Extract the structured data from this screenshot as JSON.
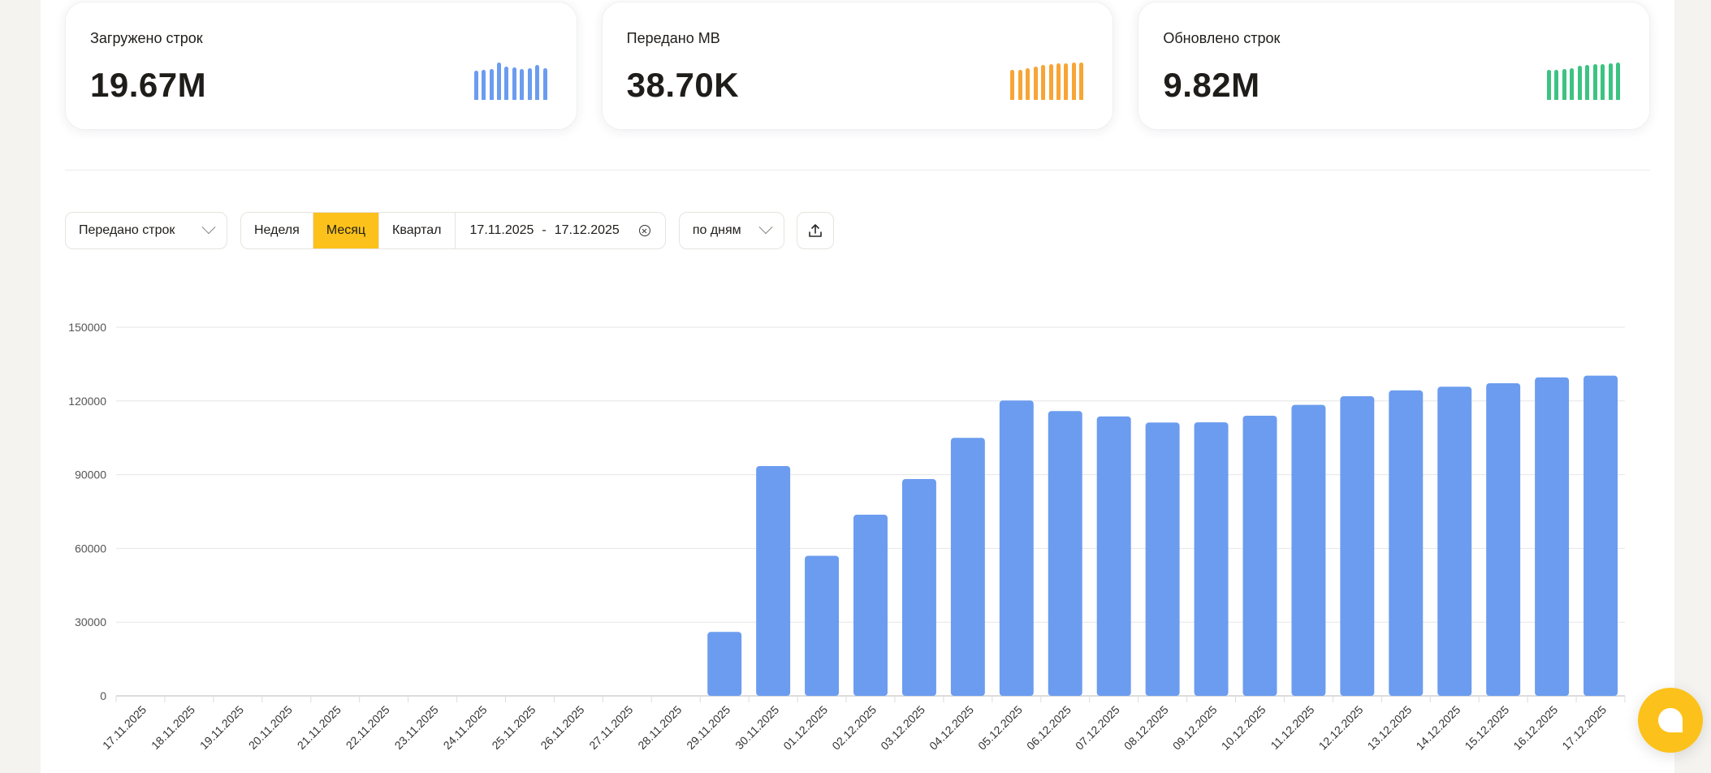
{
  "cards": [
    {
      "title": "Загружено строк",
      "value": "19.67M",
      "color": "#6b9cef",
      "spark": [
        31,
        32,
        33,
        40,
        36,
        35,
        33,
        34,
        37,
        34
      ]
    },
    {
      "title": "Передано МВ",
      "value": "38.70K",
      "color": "#f7a535",
      "spark": [
        37,
        37,
        39,
        41,
        43,
        44,
        45,
        45,
        46,
        46
      ]
    },
    {
      "title": "Обновлено строк",
      "value": "9.82M",
      "color": "#3cc382",
      "spark": [
        36,
        36,
        37,
        38,
        41,
        42,
        43,
        43,
        44,
        45
      ]
    }
  ],
  "controls": {
    "metric_select": "Передано строк",
    "periods": [
      "Неделя",
      "Месяц",
      "Квартал"
    ],
    "active_period": "Месяц",
    "date_from": "17.11.2025",
    "date_sep": "-",
    "date_to": "17.12.2025",
    "group_select": "по дням",
    "icons": {
      "metric_chevron": "chevron-down-icon",
      "clear": "clear-circle-x-icon",
      "group_chevron": "chevron-down-icon",
      "export": "upload-export-icon"
    }
  },
  "chat": {
    "icon": "chat-bubble-icon",
    "color": "#fcc21b"
  },
  "chart_data": {
    "type": "bar",
    "title": "",
    "xlabel": "",
    "ylabel": "",
    "ylim": [
      0,
      150000
    ],
    "yticks": [
      0,
      30000,
      60000,
      90000,
      120000,
      150000
    ],
    "grid": true,
    "bar_color": "#6b9cef",
    "categories": [
      "17.11.2025",
      "18.11.2025",
      "19.11.2025",
      "20.11.2025",
      "21.11.2025",
      "22.11.2025",
      "23.11.2025",
      "24.11.2025",
      "25.11.2025",
      "26.11.2025",
      "27.11.2025",
      "28.11.2025",
      "29.11.2025",
      "30.11.2025",
      "01.12.2025",
      "02.12.2025",
      "03.12.2025",
      "04.12.2025",
      "05.12.2025",
      "06.12.2025",
      "07.12.2025",
      "08.12.2025",
      "09.12.2025",
      "10.12.2025",
      "11.12.2025",
      "12.12.2025",
      "13.12.2025",
      "14.12.2025",
      "15.12.2025",
      "16.12.2025",
      "17.12.2025"
    ],
    "values": [
      0,
      0,
      0,
      0,
      0,
      0,
      0,
      0,
      0,
      0,
      0,
      0,
      26000,
      93500,
      57000,
      73700,
      88200,
      105000,
      120200,
      115900,
      113700,
      111200,
      111300,
      114000,
      118400,
      121900,
      124300,
      125800,
      127200,
      129600,
      130300
    ]
  }
}
